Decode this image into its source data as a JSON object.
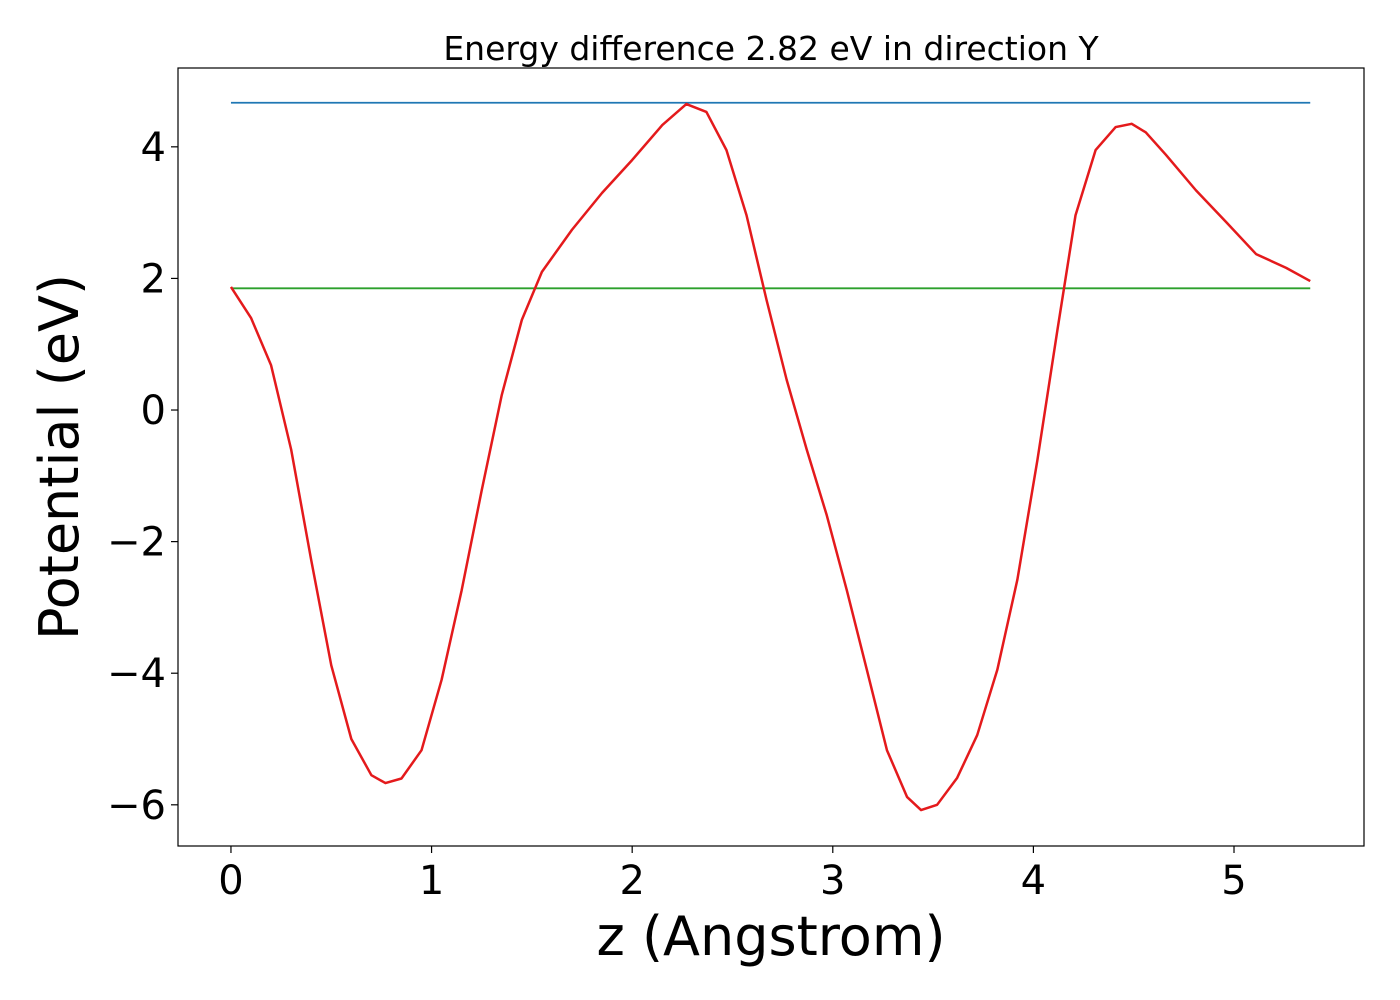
{
  "chart_data": {
    "type": "line",
    "title": "Energy difference 2.82 eV in direction Y",
    "xlabel": "z (Angstrom)",
    "ylabel": "Potential (eV)",
    "xlim": [
      -0.264,
      5.648
    ],
    "ylim": [
      -6.626,
      5.198
    ],
    "xticks": [
      0,
      1,
      2,
      3,
      4,
      5
    ],
    "yticks": [
      {
        "value": -6,
        "label": "−6"
      },
      {
        "value": -4,
        "label": "−4"
      },
      {
        "value": -2,
        "label": "−2"
      },
      0,
      2,
      4
    ],
    "series": [
      {
        "color": "#1f77b4",
        "x": [
          0,
          5.38
        ],
        "values": [
          4.67,
          4.67
        ]
      },
      {
        "color": "#2ca02c",
        "x": [
          0,
          5.38
        ],
        "values": [
          1.85,
          1.85
        ]
      },
      {
        "color": "#e41a1c",
        "x": [
          0,
          0.1,
          0.2,
          0.3,
          0.4,
          0.5,
          0.6,
          0.7,
          0.77,
          0.85,
          0.95,
          1.05,
          1.15,
          1.25,
          1.35,
          1.45,
          1.55,
          1.7,
          1.85,
          2.0,
          2.15,
          2.27,
          2.37,
          2.47,
          2.57,
          2.67,
          2.77,
          2.87,
          2.97,
          3.07,
          3.17,
          3.27,
          3.37,
          3.44,
          3.52,
          3.62,
          3.72,
          3.82,
          3.92,
          4.02,
          4.12,
          4.21,
          4.31,
          4.41,
          4.49,
          4.56,
          4.66,
          4.81,
          4.96,
          5.11,
          5.26,
          5.38
        ],
        "values": [
          1.87,
          1.4,
          0.68,
          -0.6,
          -2.28,
          -3.88,
          -5.0,
          -5.55,
          -5.67,
          -5.6,
          -5.17,
          -4.1,
          -2.74,
          -1.22,
          0.23,
          1.37,
          2.1,
          2.74,
          3.3,
          3.8,
          4.33,
          4.65,
          4.53,
          3.95,
          2.96,
          1.67,
          0.46,
          -0.6,
          -1.6,
          -2.74,
          -3.95,
          -5.17,
          -5.88,
          -6.08,
          -6.0,
          -5.59,
          -4.94,
          -3.95,
          -2.58,
          -0.76,
          1.22,
          2.96,
          3.95,
          4.3,
          4.35,
          4.22,
          3.88,
          3.34,
          2.86,
          2.37,
          2.16,
          1.96
        ]
      }
    ]
  }
}
